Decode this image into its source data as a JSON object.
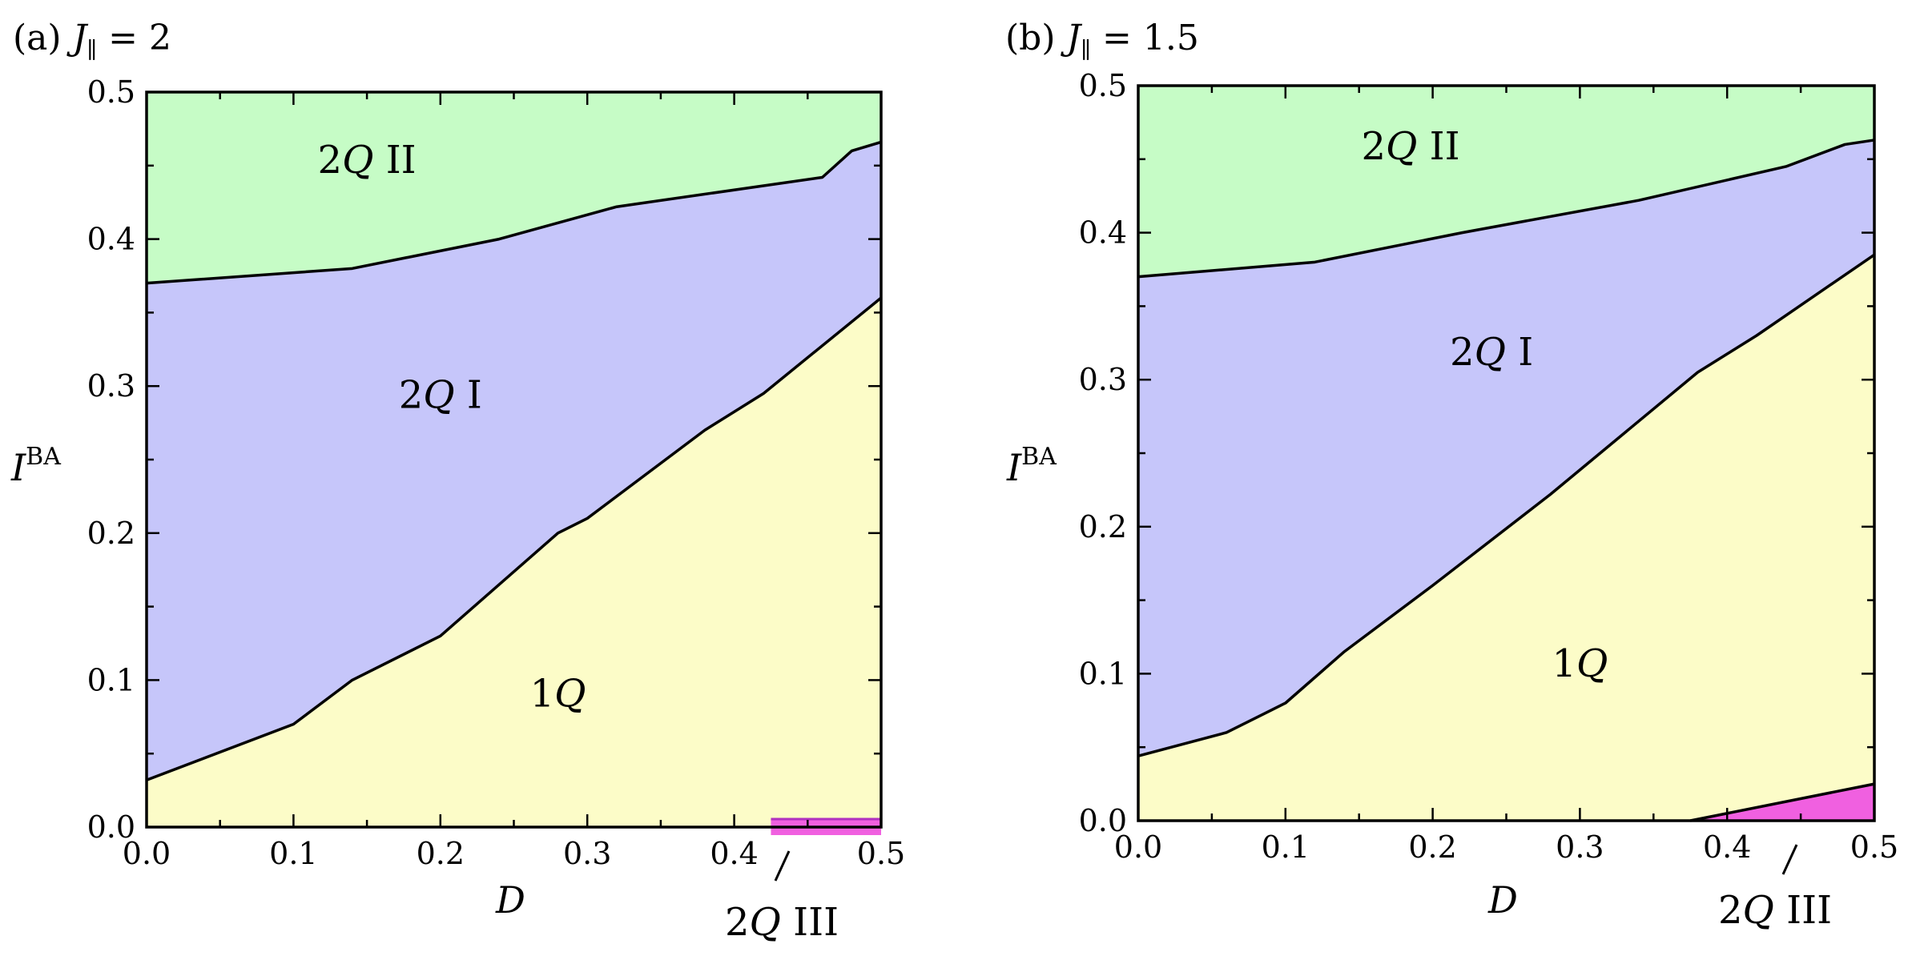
{
  "colors": {
    "2Q II": "#c6fcc6",
    "2Q I": "#c6c6fa",
    "1Q": "#fcfcc8",
    "2Q III": "#f060e0",
    "2Q III edge": "#b030c0"
  },
  "chart_data": [
    {
      "type": "area",
      "panel_letter": "(a)",
      "title_symbol": "J",
      "title_subscript": "∥",
      "title_rest": " = 2",
      "xlabel": "D",
      "ylabel_main": "I",
      "ylabel_sup": "BA",
      "xlim": [
        0,
        0.5
      ],
      "ylim": [
        0,
        0.5
      ],
      "xticks": [
        "0.0",
        "0.1",
        "0.2",
        "0.3",
        "0.4",
        "0.5"
      ],
      "yticks": [
        "0.0",
        "0.1",
        "0.2",
        "0.3",
        "0.4",
        "0.5"
      ],
      "boundaries": [
        {
          "name": "1Q / 2Q I",
          "points": [
            [
              0,
              0.032
            ],
            [
              0.1,
              0.07
            ],
            [
              0.14,
              0.1
            ],
            [
              0.2,
              0.13
            ],
            [
              0.28,
              0.2
            ],
            [
              0.3,
              0.21
            ],
            [
              0.38,
              0.27
            ],
            [
              0.42,
              0.295
            ],
            [
              0.5,
              0.36
            ]
          ]
        },
        {
          "name": "2Q I / 2Q II",
          "points": [
            [
              0,
              0.37
            ],
            [
              0.14,
              0.38
            ],
            [
              0.24,
              0.4
            ],
            [
              0.32,
              0.422
            ],
            [
              0.46,
              0.442
            ],
            [
              0.48,
              0.46
            ],
            [
              0.5,
              0.466
            ]
          ]
        }
      ],
      "region_2QIII": {
        "type": "band",
        "x": [
          0.425,
          0.5
        ],
        "y": [
          0,
          0.005
        ]
      },
      "region_labels": [
        {
          "num": "2",
          "sym": "Q",
          "suffix": " II",
          "x": 0.15,
          "y": 0.445
        },
        {
          "num": "2",
          "sym": "Q",
          "suffix": " I",
          "x": 0.2,
          "y": 0.285
        },
        {
          "num": "1",
          "sym": "Q",
          "suffix": "",
          "x": 0.28,
          "y": 0.082
        }
      ],
      "external_label": {
        "num": "2",
        "sym": "Q",
        "suffix": " III"
      }
    },
    {
      "type": "area",
      "panel_letter": "(b)",
      "title_symbol": "J",
      "title_subscript": "∥",
      "title_rest": " = 1.5",
      "xlabel": "D",
      "ylabel_main": "I",
      "ylabel_sup": "BA",
      "xlim": [
        0,
        0.5
      ],
      "ylim": [
        0,
        0.5
      ],
      "xticks": [
        "0.0",
        "0.1",
        "0.2",
        "0.3",
        "0.4",
        "0.5"
      ],
      "yticks": [
        "0.0",
        "0.1",
        "0.2",
        "0.3",
        "0.4",
        "0.5"
      ],
      "boundaries": [
        {
          "name": "1Q / 2Q I",
          "points": [
            [
              0,
              0.044
            ],
            [
              0.06,
              0.06
            ],
            [
              0.1,
              0.08
            ],
            [
              0.14,
              0.115
            ],
            [
              0.2,
              0.16
            ],
            [
              0.28,
              0.222
            ],
            [
              0.38,
              0.305
            ],
            [
              0.42,
              0.33
            ],
            [
              0.5,
              0.385
            ]
          ]
        },
        {
          "name": "2Q I / 2Q II",
          "points": [
            [
              0,
              0.37
            ],
            [
              0.12,
              0.38
            ],
            [
              0.22,
              0.4
            ],
            [
              0.34,
              0.422
            ],
            [
              0.44,
              0.445
            ],
            [
              0.48,
              0.46
            ],
            [
              0.5,
              0.463
            ]
          ]
        }
      ],
      "region_2QIII": {
        "type": "wedge",
        "points": [
          [
            0.375,
            0
          ],
          [
            0.5,
            0.025
          ]
        ]
      },
      "region_labels": [
        {
          "num": "2",
          "sym": "Q",
          "suffix": " II",
          "x": 0.185,
          "y": 0.45
        },
        {
          "num": "2",
          "sym": "Q",
          "suffix": " I",
          "x": 0.24,
          "y": 0.31
        },
        {
          "num": "1",
          "sym": "Q",
          "suffix": "",
          "x": 0.3,
          "y": 0.098
        }
      ],
      "external_label": {
        "num": "2",
        "sym": "Q",
        "suffix": " III"
      }
    }
  ]
}
